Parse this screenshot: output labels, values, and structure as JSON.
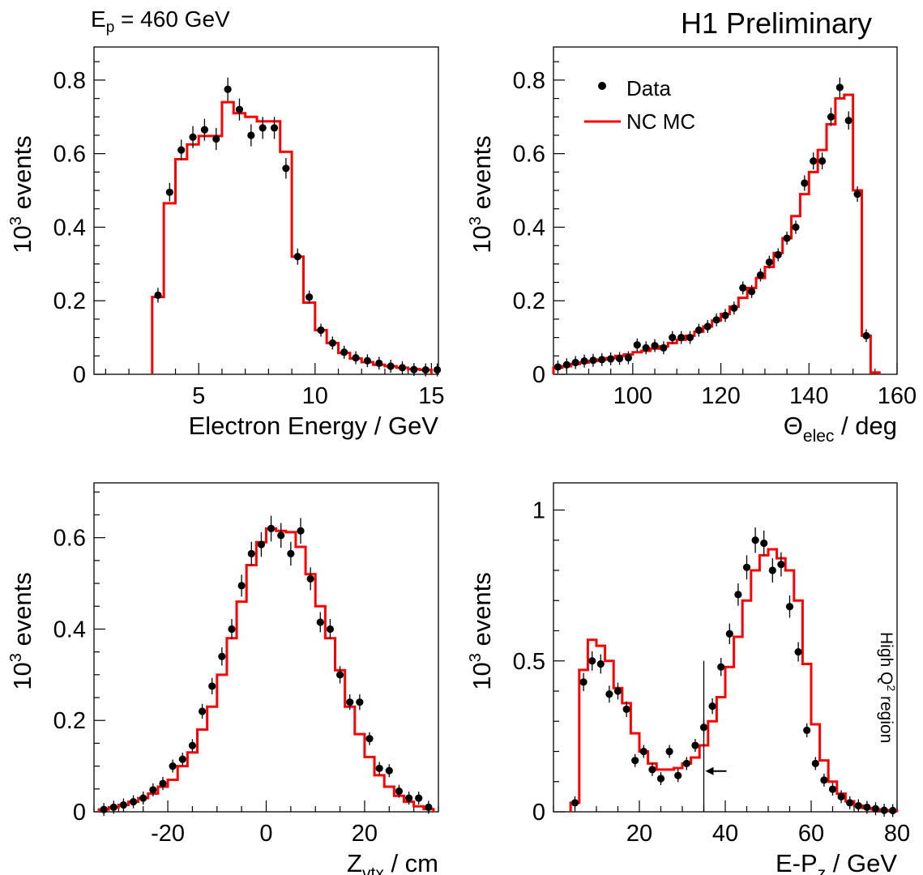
{
  "header": {
    "beam_prefix": "E",
    "beam_sub": "p",
    "beam_rest": " = 460 GeV",
    "preliminary": "H1 Preliminary",
    "side_prefix": "High Q",
    "side_sup": "2",
    "side_rest": " region"
  },
  "colors": {
    "mc": "#ff0000",
    "data": "#000000"
  },
  "legend": {
    "data_label": "Data",
    "mc_label": "NC MC"
  },
  "chart_data": [
    {
      "type": "histogram",
      "ylabel_prefix": "10",
      "ylabel_sup": "3",
      "ylabel_rest": " events",
      "xlabel_main": "Electron Energy / GeV",
      "xlabel_sub": "",
      "xlabel_tail": "",
      "xlim": [
        0.5,
        15.3
      ],
      "ylim": [
        0,
        0.89
      ],
      "xticks": [
        5,
        10,
        15
      ],
      "xminor": 1,
      "yticks": [
        0,
        0.2,
        0.4,
        0.6,
        0.8
      ],
      "yticklabels": [
        "0",
        "0.2",
        "0.4",
        "0.6",
        "0.8"
      ],
      "yminor": 0.05,
      "mc_edges": [
        3.0,
        3.5,
        4.0,
        4.5,
        5.0,
        5.5,
        6.0,
        6.5,
        7.0,
        7.5,
        8.0,
        8.5,
        9.0,
        9.5,
        10.0,
        10.5,
        11.0,
        11.5,
        12.0,
        12.5,
        13.0,
        13.5,
        14.0,
        14.5,
        15.0
      ],
      "mc_values": [
        0.21,
        0.465,
        0.585,
        0.625,
        0.648,
        0.648,
        0.74,
        0.71,
        0.7,
        0.688,
        0.688,
        0.605,
        0.32,
        0.195,
        0.12,
        0.085,
        0.058,
        0.043,
        0.033,
        0.026,
        0.022,
        0.018,
        0.014,
        0.012
      ],
      "data_x": [
        3.25,
        3.75,
        4.25,
        4.75,
        5.25,
        5.75,
        6.25,
        6.75,
        7.25,
        7.75,
        8.25,
        8.75,
        9.25,
        9.75,
        10.25,
        10.75,
        11.25,
        11.75,
        12.25,
        12.75,
        13.25,
        13.75,
        14.25,
        14.75,
        15.25
      ],
      "data_y": [
        0.215,
        0.495,
        0.61,
        0.645,
        0.665,
        0.64,
        0.775,
        0.72,
        0.65,
        0.67,
        0.67,
        0.56,
        0.32,
        0.21,
        0.12,
        0.085,
        0.06,
        0.045,
        0.037,
        0.03,
        0.022,
        0.018,
        0.013,
        0.012,
        0.012
      ],
      "data_err": [
        0.02,
        0.025,
        0.028,
        0.03,
        0.03,
        0.03,
        0.032,
        0.03,
        0.03,
        0.03,
        0.03,
        0.028,
        0.022,
        0.017,
        0.013,
        0.011,
        0.009,
        0.008,
        0.007,
        0.006,
        0.006,
        0.005,
        0.004,
        0.004,
        0.004
      ],
      "arrow": null,
      "legend": false
    },
    {
      "type": "histogram",
      "ylabel_prefix": "10",
      "ylabel_sup": "3",
      "ylabel_rest": " events",
      "xlabel_main": "Θ",
      "xlabel_sub": "elec",
      "xlabel_tail": " / deg",
      "xlim": [
        82,
        160
      ],
      "ylim": [
        0,
        0.89
      ],
      "xticks": [
        100,
        120,
        140,
        160
      ],
      "xminor": 5,
      "yticks": [
        0,
        0.2,
        0.4,
        0.6,
        0.8
      ],
      "yticklabels": [
        "0",
        "0.2",
        "0.4",
        "0.6",
        "0.8"
      ],
      "yminor": 0.05,
      "mc_edges": [
        82,
        84,
        86,
        88,
        90,
        92,
        94,
        96,
        98,
        100,
        102,
        104,
        106,
        108,
        110,
        112,
        114,
        116,
        118,
        120,
        122,
        124,
        126,
        128,
        130,
        132,
        134,
        136,
        138,
        140,
        142,
        144,
        146,
        148,
        150,
        152,
        154,
        156
      ],
      "mc_values": [
        0.018,
        0.022,
        0.028,
        0.032,
        0.036,
        0.04,
        0.044,
        0.05,
        0.054,
        0.06,
        0.064,
        0.07,
        0.076,
        0.085,
        0.094,
        0.105,
        0.116,
        0.13,
        0.146,
        0.164,
        0.184,
        0.208,
        0.235,
        0.262,
        0.292,
        0.33,
        0.37,
        0.43,
        0.49,
        0.55,
        0.61,
        0.68,
        0.75,
        0.76,
        0.5,
        0.105,
        0.005
      ],
      "data_x": [
        83,
        85,
        87,
        89,
        91,
        93,
        95,
        97,
        99,
        101,
        103,
        105,
        107,
        109,
        111,
        113,
        115,
        117,
        119,
        121,
        123,
        125,
        127,
        129,
        131,
        133,
        135,
        137,
        139,
        141,
        143,
        145,
        147,
        149,
        151,
        153
      ],
      "data_y": [
        0.02,
        0.026,
        0.032,
        0.036,
        0.038,
        0.04,
        0.042,
        0.043,
        0.045,
        0.08,
        0.072,
        0.078,
        0.072,
        0.1,
        0.1,
        0.1,
        0.12,
        0.13,
        0.148,
        0.16,
        0.18,
        0.235,
        0.225,
        0.27,
        0.305,
        0.325,
        0.37,
        0.4,
        0.52,
        0.58,
        0.58,
        0.7,
        0.78,
        0.69,
        0.49,
        0.105
      ],
      "data_err": [
        0.004,
        0.004,
        0.005,
        0.005,
        0.005,
        0.005,
        0.005,
        0.005,
        0.006,
        0.008,
        0.008,
        0.008,
        0.008,
        0.009,
        0.009,
        0.009,
        0.01,
        0.01,
        0.011,
        0.011,
        0.012,
        0.014,
        0.013,
        0.015,
        0.016,
        0.016,
        0.018,
        0.018,
        0.021,
        0.023,
        0.023,
        0.025,
        0.027,
        0.025,
        0.021,
        0.01
      ],
      "arrow": null,
      "legend": true
    },
    {
      "type": "histogram",
      "ylabel_prefix": "10",
      "ylabel_sup": "3",
      "ylabel_rest": " events",
      "xlabel_main": "Z",
      "xlabel_sub": "vtx",
      "xlabel_tail": " / cm",
      "xlim": [
        -35,
        35
      ],
      "ylim": [
        0,
        0.72
      ],
      "xticks": [
        -20,
        0,
        20
      ],
      "xminor": 5,
      "yticks": [
        0,
        0.2,
        0.4,
        0.6
      ],
      "yticklabels": [
        "0",
        "0.2",
        "0.4",
        "0.6"
      ],
      "yminor": 0.05,
      "mc_edges": [
        -34,
        -32,
        -30,
        -28,
        -26,
        -24,
        -22,
        -20,
        -18,
        -16,
        -14,
        -12,
        -10,
        -8,
        -6,
        -4,
        -2,
        0,
        2,
        4,
        6,
        8,
        10,
        12,
        14,
        16,
        18,
        20,
        22,
        24,
        26,
        28,
        30,
        32,
        34
      ],
      "mc_values": [
        0.005,
        0.01,
        0.015,
        0.022,
        0.03,
        0.04,
        0.055,
        0.07,
        0.1,
        0.13,
        0.18,
        0.23,
        0.3,
        0.38,
        0.46,
        0.54,
        0.59,
        0.62,
        0.615,
        0.612,
        0.58,
        0.52,
        0.45,
        0.38,
        0.31,
        0.23,
        0.17,
        0.12,
        0.08,
        0.055,
        0.035,
        0.022,
        0.012,
        0.006
      ],
      "data_x": [
        -33,
        -31,
        -29,
        -27,
        -25,
        -23,
        -21,
        -19,
        -17,
        -15,
        -13,
        -11,
        -9,
        -7,
        -5,
        -3,
        -1,
        1,
        3,
        5,
        7,
        9,
        11,
        13,
        15,
        17,
        19,
        21,
        23,
        25,
        27,
        29,
        31,
        33
      ],
      "data_y": [
        0.005,
        0.01,
        0.015,
        0.022,
        0.03,
        0.048,
        0.062,
        0.1,
        0.115,
        0.145,
        0.22,
        0.275,
        0.34,
        0.4,
        0.495,
        0.565,
        0.585,
        0.62,
        0.605,
        0.565,
        0.615,
        0.51,
        0.415,
        0.4,
        0.3,
        0.24,
        0.24,
        0.16,
        0.095,
        0.09,
        0.045,
        0.03,
        0.03,
        0.01
      ],
      "data_err": [
        0.004,
        0.004,
        0.005,
        0.006,
        0.007,
        0.008,
        0.009,
        0.011,
        0.012,
        0.013,
        0.016,
        0.018,
        0.02,
        0.022,
        0.024,
        0.026,
        0.027,
        0.028,
        0.027,
        0.026,
        0.028,
        0.025,
        0.022,
        0.022,
        0.019,
        0.017,
        0.017,
        0.014,
        0.011,
        0.011,
        0.008,
        0.006,
        0.006,
        0.004
      ],
      "arrow": null,
      "legend": false
    },
    {
      "type": "histogram",
      "ylabel_prefix": "10",
      "ylabel_sup": "3",
      "ylabel_rest": " events",
      "xlabel_main": "E-P",
      "xlabel_sub": "z",
      "xlabel_tail": " / GeV",
      "xlim": [
        0,
        80
      ],
      "ylim": [
        0,
        1.09
      ],
      "xticks": [
        20,
        40,
        60,
        80
      ],
      "xminor": 5,
      "yticks": [
        0,
        0.5,
        1
      ],
      "yticklabels": [
        "0",
        "0.5",
        "1"
      ],
      "yminor": 0.1,
      "mc_edges": [
        4,
        6,
        8,
        10,
        12,
        14,
        16,
        18,
        20,
        22,
        24,
        26,
        28,
        30,
        32,
        34,
        36,
        38,
        40,
        42,
        44,
        46,
        48,
        50,
        52,
        54,
        56,
        58,
        60,
        62,
        64,
        66,
        68,
        70,
        72,
        74,
        76,
        78,
        80
      ],
      "mc_values": [
        0.03,
        0.47,
        0.57,
        0.55,
        0.5,
        0.41,
        0.36,
        0.26,
        0.2,
        0.16,
        0.14,
        0.14,
        0.145,
        0.16,
        0.18,
        0.22,
        0.3,
        0.38,
        0.48,
        0.58,
        0.7,
        0.8,
        0.85,
        0.87,
        0.84,
        0.8,
        0.7,
        0.49,
        0.29,
        0.17,
        0.1,
        0.06,
        0.035,
        0.02,
        0.012,
        0.008,
        0.005,
        0.003
      ],
      "data_x": [
        5,
        7,
        9,
        11,
        13,
        15,
        17,
        19,
        21,
        23,
        25,
        27,
        29,
        31,
        33,
        35,
        37,
        39,
        41,
        43,
        45,
        47,
        49,
        51,
        53,
        55,
        57,
        59,
        61,
        63,
        65,
        67,
        69,
        71,
        73,
        75,
        77,
        79
      ],
      "data_y": [
        0.03,
        0.43,
        0.5,
        0.49,
        0.39,
        0.4,
        0.34,
        0.17,
        0.2,
        0.14,
        0.11,
        0.2,
        0.12,
        0.16,
        0.22,
        0.28,
        0.35,
        0.48,
        0.59,
        0.72,
        0.81,
        0.9,
        0.89,
        0.8,
        0.82,
        0.68,
        0.53,
        0.27,
        0.16,
        0.105,
        0.075,
        0.05,
        0.03,
        0.02,
        0.015,
        0.01,
        0.005,
        0.004
      ],
      "data_err": [
        0.01,
        0.03,
        0.032,
        0.032,
        0.028,
        0.028,
        0.026,
        0.019,
        0.02,
        0.017,
        0.015,
        0.02,
        0.016,
        0.018,
        0.021,
        0.024,
        0.026,
        0.03,
        0.034,
        0.037,
        0.04,
        0.042,
        0.042,
        0.04,
        0.04,
        0.037,
        0.032,
        0.023,
        0.018,
        0.014,
        0.012,
        0.01,
        0.008,
        0.006,
        0.005,
        0.004,
        0.003,
        0.003
      ],
      "arrow": {
        "x": 35,
        "direction": "left"
      },
      "legend": false
    }
  ]
}
